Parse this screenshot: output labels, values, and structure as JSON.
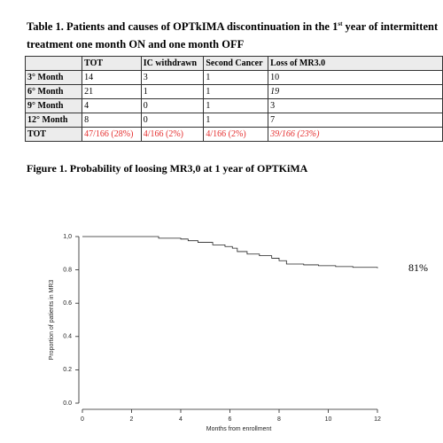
{
  "table": {
    "caption": [
      "Table 1. Patients and causes of OPTkIMA discontinuation in the 1",
      "st",
      " year of intermittent",
      "treatment one month ON and one month OFF"
    ],
    "header": [
      "",
      "TOT",
      "IC withdrawn",
      "Second Cancer",
      "Loss of MR3.0"
    ],
    "rows": [
      [
        "3° Month",
        "14",
        "3",
        "1",
        "10"
      ],
      [
        "6° Month",
        "21",
        "1",
        "1",
        "19"
      ],
      [
        "9° Month",
        "4",
        "0",
        "1",
        "3"
      ],
      [
        "12° Month",
        "8",
        "0",
        "1",
        "7"
      ],
      [
        "TOT",
        "47/166 (28%)",
        "4/166 (2%)",
        "4/166 (2%)",
        "39/166 (23%)"
      ]
    ]
  },
  "chart_data": {
    "type": "step",
    "title": "Figure 1. Probability of loosing MR3,0 at 1 year of OPTKiMA",
    "annotation": "81%",
    "xlabel": "Months from enrollment",
    "ylabel": "Proportion of patients in MR3",
    "x": [
      0,
      3.1,
      4.0,
      4.3,
      4.7,
      5.3,
      5.8,
      6.1,
      6.3,
      6.7,
      7.2,
      7.7,
      8.0,
      8.3,
      9.0,
      9.6,
      10.3,
      11.0,
      12.0
    ],
    "values": [
      1,
      0.99,
      0.985,
      0.975,
      0.965,
      0.95,
      0.94,
      0.93,
      0.91,
      0.895,
      0.885,
      0.87,
      0.855,
      0.835,
      0.83,
      0.825,
      0.82,
      0.815,
      0.81
    ],
    "color": "#000000",
    "xlim": [
      0,
      12
    ],
    "xticks": [
      0,
      2,
      4,
      6,
      8,
      10,
      12
    ],
    "ylim": [
      0,
      1
    ],
    "yticks": [
      {
        "value": 0,
        "label": "0.0"
      },
      0.2,
      0.4,
      0.6,
      0.8,
      {
        "value": 1,
        "label": "1,0"
      }
    ],
    "grid": false
  }
}
